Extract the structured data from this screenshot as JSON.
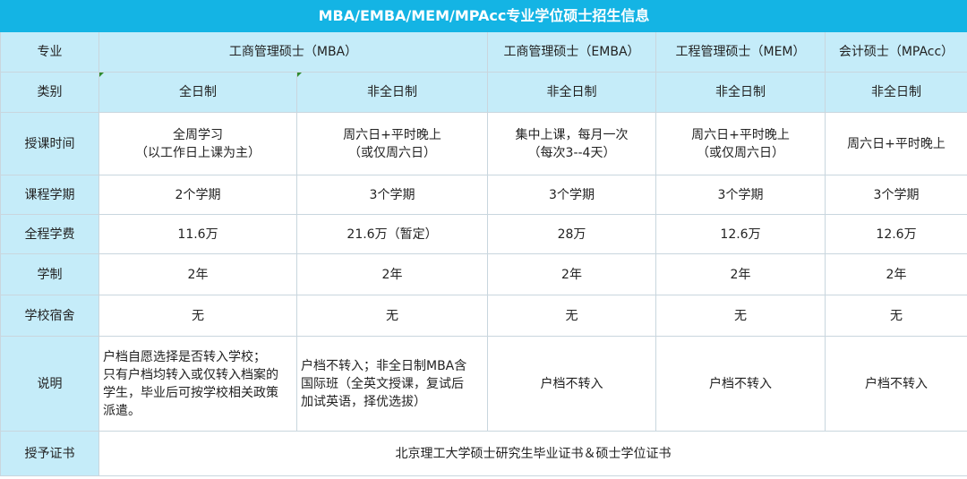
{
  "title": "MBA/EMBA/MEM/MPAcc专业学位硕士招生信息",
  "header": {
    "label": "专业",
    "cols": [
      "工商管理硕士（MBA）",
      "工商管理硕士（EMBA）",
      "工程管理硕士（MEM）",
      "会计硕士（MPAcc）"
    ]
  },
  "rows": {
    "category": {
      "label": "类别",
      "cells": [
        "全日制",
        "非全日制",
        "非全日制",
        "非全日制",
        "非全日制"
      ]
    },
    "schedule": {
      "label": "授课时间",
      "cells": [
        [
          "全周学习",
          "（以工作日上课为主）"
        ],
        [
          "周六日+平时晚上",
          "（或仅周六日）"
        ],
        [
          "集中上课，每月一次",
          "（每次3--4天）"
        ],
        [
          "周六日+平时晚上",
          "（或仅周六日）"
        ],
        [
          "周六日+平时晚上"
        ]
      ]
    },
    "terms": {
      "label": "课程学期",
      "cells": [
        "2个学期",
        "3个学期",
        "3个学期",
        "3个学期",
        "3个学期"
      ]
    },
    "fee": {
      "label": "全程学费",
      "cells": [
        "11.6万",
        "21.6万（暂定）",
        "28万",
        "12.6万",
        "12.6万"
      ]
    },
    "duration": {
      "label": "学制",
      "cells": [
        "2年",
        "2年",
        "2年",
        "2年",
        "2年"
      ]
    },
    "dorm": {
      "label": "学校宿舍",
      "cells": [
        "无",
        "无",
        "无",
        "无",
        "无"
      ]
    },
    "notes": {
      "label": "说明",
      "cells": [
        [
          "户档自愿选择是否转入学校；",
          "只有户档均转入或仅转入档案的",
          "学生，毕业后可按学校相关政策",
          "派遣。"
        ],
        [
          "户档不转入；非全日制MBA含",
          "国际班（全英文授课，复试后",
          "加试英语，择优选拔）"
        ],
        [
          "户档不转入"
        ],
        [
          "户档不转入"
        ],
        [
          "户档不转入"
        ]
      ]
    },
    "certificate": {
      "label": "授予证书",
      "value": "北京理工大学硕士研究生毕业证书＆硕士学位证书"
    }
  }
}
